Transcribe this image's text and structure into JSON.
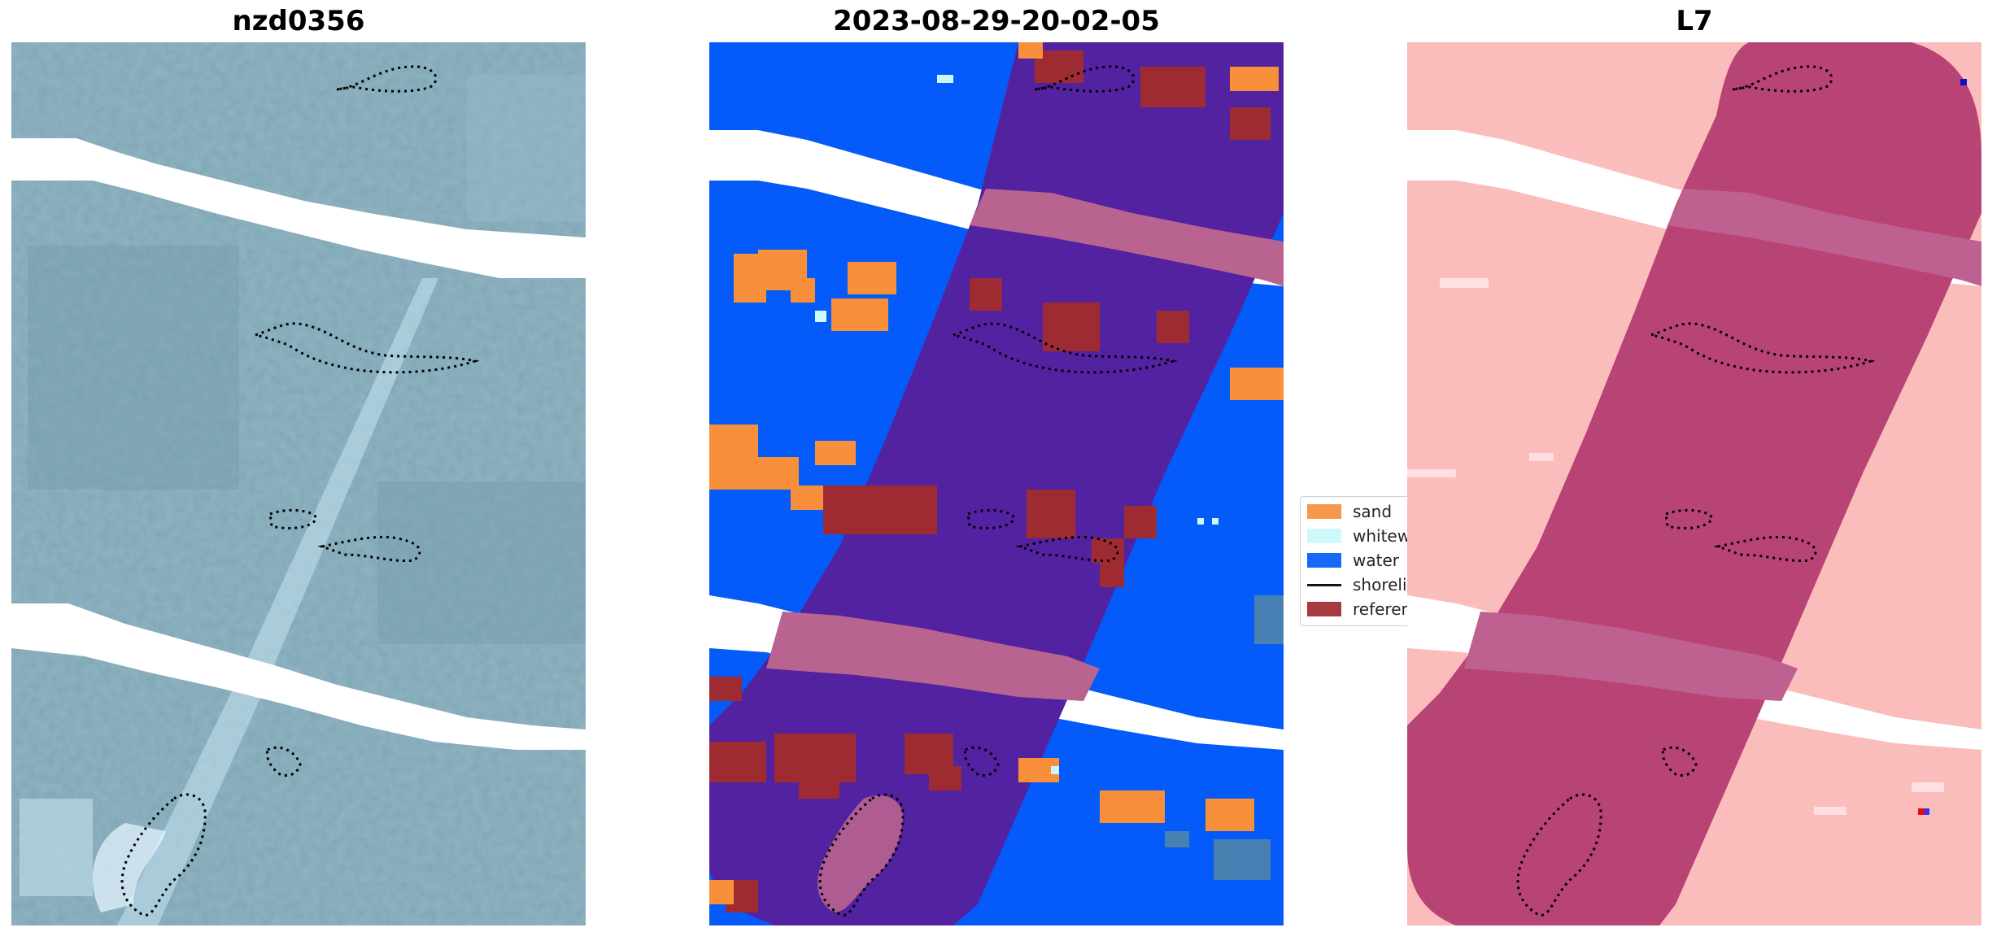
{
  "panels": [
    {
      "title": "nzd0356"
    },
    {
      "title": "2023-08-29-20-02-05"
    },
    {
      "title": "L7"
    }
  ],
  "legend": {
    "items": [
      {
        "label": "sand",
        "color": "#f78f3b",
        "kind": "patch"
      },
      {
        "label": "whitewater",
        "color": "#ccf8fb",
        "kind": "patch"
      },
      {
        "label": "water",
        "color": "#045bf9",
        "kind": "patch"
      },
      {
        "label": "shoreline",
        "color": "#000000",
        "kind": "line"
      },
      {
        "label": "reference shoreline buffer",
        "color": "#9e2b31",
        "kind": "patch"
      }
    ]
  },
  "colors": {
    "rgb_base": "#7fa6b6",
    "class_background": "#5222a0",
    "class_stripe": "#b86390",
    "l7_background": "#fbbcbc",
    "l7_strip": "#b84475",
    "l7_stripe": "#bf6190",
    "nodata": "#ffffff"
  }
}
